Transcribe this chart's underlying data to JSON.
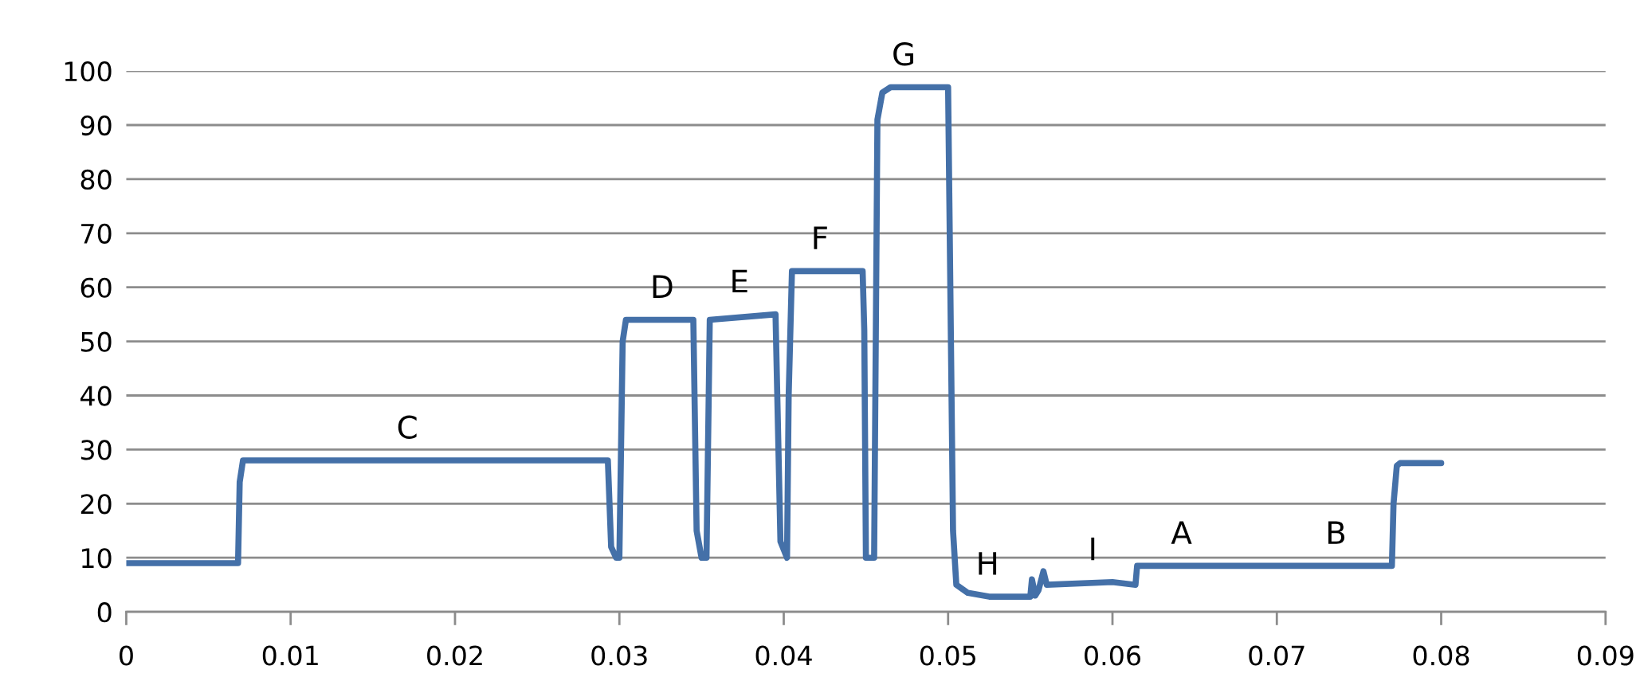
{
  "chart_data": {
    "type": "line",
    "color": "#4470a8",
    "x": [
      0,
      0.0068,
      0.0069,
      0.0071,
      0.0293,
      0.0295,
      0.0298,
      0.03,
      0.0302,
      0.0304,
      0.0345,
      0.0347,
      0.035,
      0.0353,
      0.0355,
      0.0395,
      0.0398,
      0.0402,
      0.0403,
      0.0405,
      0.0448,
      0.0449,
      0.045,
      0.0455,
      0.0457,
      0.046,
      0.0465,
      0.05,
      0.0503,
      0.0505,
      0.0512,
      0.0525,
      0.055,
      0.0551,
      0.0553,
      0.0555,
      0.0558,
      0.056,
      0.06,
      0.0614,
      0.0615,
      0.077,
      0.0771,
      0.0773,
      0.0775,
      0.08
    ],
    "values": [
      9,
      9,
      24,
      28,
      28,
      12,
      10,
      10,
      50,
      54,
      54,
      15,
      10,
      10,
      54,
      55,
      13,
      10,
      40,
      63,
      63,
      52,
      10,
      10,
      91,
      96,
      97,
      97,
      15,
      5,
      3.5,
      2.8,
      2.8,
      6,
      3,
      4,
      7.5,
      5,
      5.5,
      5,
      8.5,
      8.5,
      20,
      27,
      27.5,
      27.5
    ],
    "xlim": [
      0,
      0.09
    ],
    "xticks": [
      0,
      0.01,
      0.02,
      0.03,
      0.04,
      0.05,
      0.06,
      0.07,
      0.08,
      0.09
    ],
    "ylim": [
      0,
      100
    ],
    "yticks": [
      0,
      10,
      20,
      30,
      40,
      50,
      60,
      70,
      80,
      90,
      100
    ],
    "grid": "y",
    "legend": false,
    "annotations": [
      {
        "text": "C",
        "x": 0.0171,
        "y": 28
      },
      {
        "text": "D",
        "x": 0.0326,
        "y": 54
      },
      {
        "text": "E",
        "x": 0.0373,
        "y": 55
      },
      {
        "text": "F",
        "x": 0.0422,
        "y": 63
      },
      {
        "text": "G",
        "x": 0.0473,
        "y": 97
      },
      {
        "text": "H",
        "x": 0.0524,
        "y": 2.8
      },
      {
        "text": "I",
        "x": 0.0588,
        "y": 5.5
      },
      {
        "text": "A",
        "x": 0.0642,
        "y": 8.5
      },
      {
        "text": "B",
        "x": 0.0736,
        "y": 8.5
      }
    ]
  }
}
